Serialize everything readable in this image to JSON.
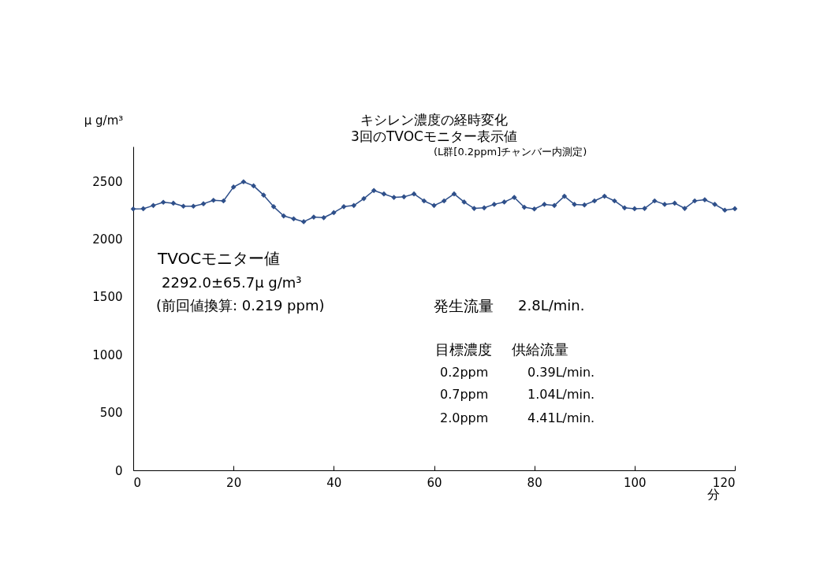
{
  "chart_data": {
    "type": "line",
    "title": "キシレン濃度の経時変化",
    "subtitle": "3回のTVOCモニター表示値",
    "xlabel": "分",
    "ylabel": "μ g/m³",
    "x": [
      0,
      2,
      4,
      6,
      8,
      10,
      12,
      14,
      16,
      18,
      20,
      22,
      24,
      26,
      28,
      30,
      32,
      34,
      36,
      38,
      40,
      42,
      44,
      46,
      48,
      50,
      52,
      54,
      56,
      58,
      60,
      62,
      64,
      66,
      68,
      70,
      72,
      74,
      76,
      78,
      80,
      82,
      84,
      86,
      88,
      90,
      92,
      94,
      96,
      98,
      100,
      102,
      104,
      106,
      108,
      110,
      112,
      114,
      116,
      118,
      120
    ],
    "series": [
      {
        "color": "#2e4f8a",
        "values": [
          2260,
          2262,
          2290,
          2318,
          2310,
          2284,
          2284,
          2305,
          2335,
          2330,
          2450,
          2495,
          2460,
          2380,
          2280,
          2200,
          2175,
          2150,
          2190,
          2185,
          2228,
          2280,
          2290,
          2350,
          2420,
          2390,
          2360,
          2365,
          2390,
          2330,
          2290,
          2330,
          2390,
          2320,
          2265,
          2270,
          2300,
          2320,
          2360,
          2275,
          2260,
          2300,
          2290,
          2370,
          2300,
          2295,
          2330,
          2370,
          2330,
          2270,
          2262,
          2265,
          2330,
          2300,
          2310,
          2265,
          2330,
          2340,
          2300,
          2250,
          2262
        ]
      }
    ],
    "xlim": [
      0,
      120
    ],
    "xticks": [
      0,
      20,
      40,
      60,
      80,
      100,
      120
    ],
    "ylim": [
      0,
      2800
    ],
    "yticks": [
      0,
      500,
      1000,
      1500,
      2000,
      2500
    ],
    "grid": false,
    "marker": "diamond",
    "line_style": "solid",
    "annotations": [
      "(L群[0.2ppm]チャンバー内測定)",
      "TVOCモニター値",
      "2292.0±65.7μ g/m³",
      "(前回値換算: 0.219 ppm)",
      "発生流量",
      "2.8L/min.",
      "目標濃度",
      "供給流量",
      "0.2ppm",
      "0.39L/min.",
      "0.7ppm",
      "1.04L/min.",
      "2.0ppm",
      "4.41L/min."
    ]
  }
}
